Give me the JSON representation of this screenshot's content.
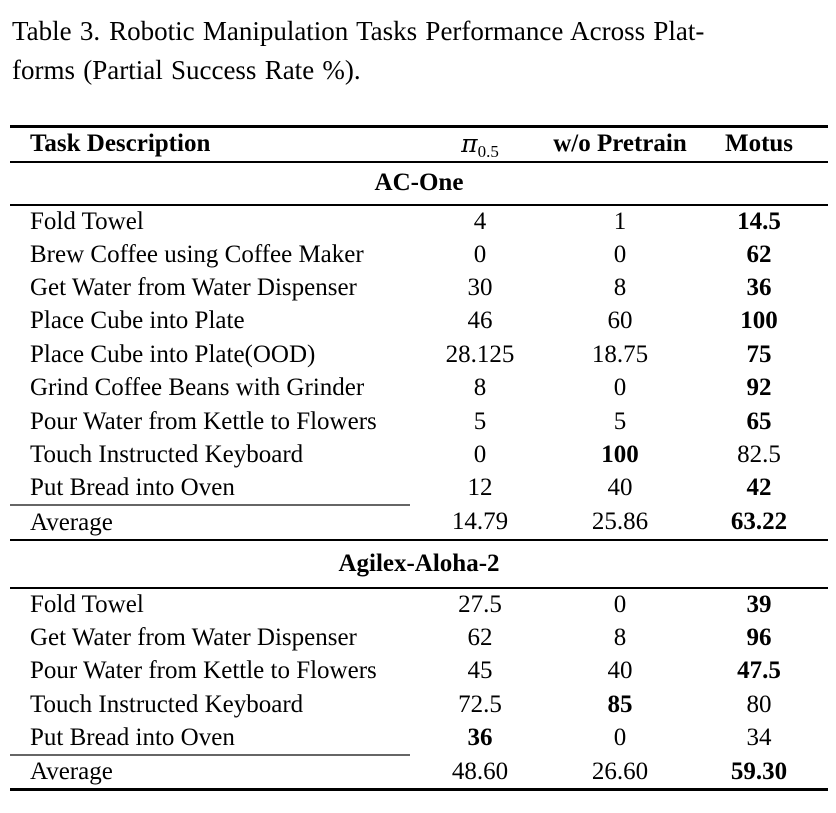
{
  "colors": {
    "text": "#000000",
    "background": "#ffffff",
    "rule": "#000000",
    "partial_rule": "#666666"
  },
  "caption": {
    "label": "Table 3.",
    "line1": "Robotic Manipulation Tasks Performance Across Plat-",
    "line2": "forms (Partial Success Rate %)."
  },
  "table": {
    "header": {
      "task": "Task Description",
      "pi_symbol": "π",
      "pi_subscript": "0.5",
      "col3": "w/o Pretrain",
      "col4": "Motus"
    },
    "sections": [
      {
        "name": "AC-One",
        "rows": [
          {
            "task": "Fold Towel",
            "v1": "4",
            "b1": false,
            "v2": "1",
            "b2": false,
            "v3": "14.5",
            "b3": true
          },
          {
            "task": "Brew Coffee using Coffee Maker",
            "v1": "0",
            "b1": false,
            "v2": "0",
            "b2": false,
            "v3": "62",
            "b3": true
          },
          {
            "task": "Get Water from Water Dispenser",
            "v1": "30",
            "b1": false,
            "v2": "8",
            "b2": false,
            "v3": "36",
            "b3": true
          },
          {
            "task": "Place Cube into Plate",
            "v1": "46",
            "b1": false,
            "v2": "60",
            "b2": false,
            "v3": "100",
            "b3": true
          },
          {
            "task": "Place Cube into Plate(OOD)",
            "v1": "28.125",
            "b1": false,
            "v2": "18.75",
            "b2": false,
            "v3": "75",
            "b3": true
          },
          {
            "task": "Grind Coffee Beans with Grinder",
            "v1": "8",
            "b1": false,
            "v2": "0",
            "b2": false,
            "v3": "92",
            "b3": true
          },
          {
            "task": "Pour Water from Kettle to Flowers",
            "v1": "5",
            "b1": false,
            "v2": "5",
            "b2": false,
            "v3": "65",
            "b3": true
          },
          {
            "task": "Touch Instructed Keyboard",
            "v1": "0",
            "b1": false,
            "v2": "100",
            "b2": true,
            "v3": "82.5",
            "b3": false
          },
          {
            "task": "Put Bread into Oven",
            "v1": "12",
            "b1": false,
            "v2": "40",
            "b2": false,
            "v3": "42",
            "b3": true
          }
        ],
        "average": {
          "task": "Average",
          "v1": "14.79",
          "b1": false,
          "v2": "25.86",
          "b2": false,
          "v3": "63.22",
          "b3": true
        }
      },
      {
        "name": "Agilex-Aloha-2",
        "rows": [
          {
            "task": "Fold Towel",
            "v1": "27.5",
            "b1": false,
            "v2": "0",
            "b2": false,
            "v3": "39",
            "b3": true
          },
          {
            "task": "Get Water from Water Dispenser",
            "v1": "62",
            "b1": false,
            "v2": "8",
            "b2": false,
            "v3": "96",
            "b3": true
          },
          {
            "task": "Pour Water from Kettle to Flowers",
            "v1": "45",
            "b1": false,
            "v2": "40",
            "b2": false,
            "v3": "47.5",
            "b3": true
          },
          {
            "task": "Touch Instructed Keyboard",
            "v1": "72.5",
            "b1": false,
            "v2": "85",
            "b2": true,
            "v3": "80",
            "b3": false
          },
          {
            "task": "Put Bread into Oven",
            "v1": "36",
            "b1": true,
            "v2": "0",
            "b2": false,
            "v3": "34",
            "b3": false
          }
        ],
        "average": {
          "task": "Average",
          "v1": "48.60",
          "b1": false,
          "v2": "26.60",
          "b2": false,
          "v3": "59.30",
          "b3": true
        }
      }
    ]
  }
}
